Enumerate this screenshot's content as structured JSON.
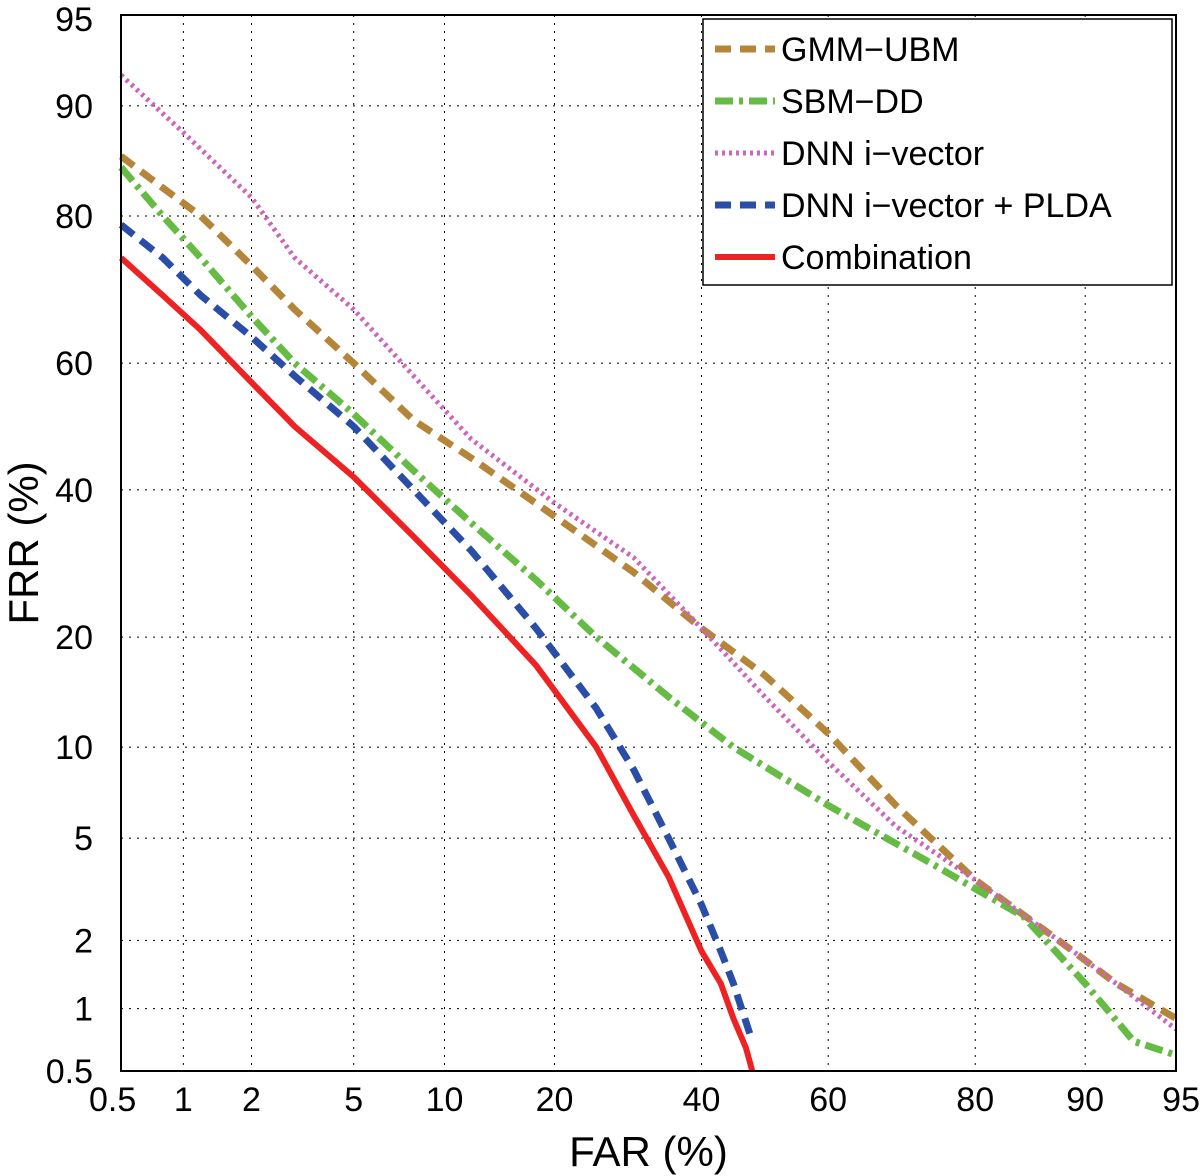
{
  "chart_data": {
    "type": "line",
    "title": "",
    "xlabel": "FAR (%)",
    "ylabel": "FRR (%)",
    "scale": "normal-deviate (DET)",
    "xlim": [
      0.5,
      95
    ],
    "ylim": [
      0.5,
      95
    ],
    "grid": true,
    "legend_position": "top-right",
    "x_ticks": [
      0.5,
      1,
      2,
      5,
      10,
      20,
      40,
      60,
      80,
      90,
      95
    ],
    "x_tick_labels": [
      "0.5",
      "1",
      "2",
      "5",
      "10",
      "20",
      "40",
      "60",
      "80",
      "90",
      "95"
    ],
    "y_ticks": [
      0.5,
      1,
      2,
      5,
      10,
      20,
      40,
      60,
      80,
      90,
      95
    ],
    "y_tick_labels": [
      "0.5",
      "1",
      "2",
      "5",
      "10",
      "20",
      "40",
      "60",
      "80",
      "90",
      "95"
    ],
    "series": [
      {
        "name": "GMM−UBM",
        "color": "#b5863a",
        "style": "dashed",
        "x": [
          0.5,
          0.8,
          1.2,
          2,
          3,
          5,
          8,
          12,
          20,
          30,
          40,
          50,
          60,
          70,
          80,
          88,
          92,
          95
        ],
        "y": [
          86,
          83,
          80,
          74,
          68,
          60,
          51,
          45,
          36,
          28,
          21,
          16,
          11,
          6.5,
          3.5,
          2,
          1.3,
          0.9
        ]
      },
      {
        "name": "SBM−DD",
        "color": "#66bb44",
        "style": "dash-dot",
        "x": [
          0.5,
          0.8,
          1.2,
          2,
          3,
          5,
          8,
          12,
          18,
          25,
          35,
          45,
          60,
          75,
          85,
          90,
          93,
          95
        ],
        "y": [
          85,
          80,
          75,
          67,
          60,
          52,
          43,
          35,
          27,
          20,
          14,
          10,
          6.5,
          4,
          2.5,
          1.3,
          0.7,
          0.6
        ]
      },
      {
        "name": "DNN i−vector",
        "color": "#cc66bb",
        "style": "dotted",
        "x": [
          0.5,
          1,
          2,
          3,
          5,
          8,
          12,
          20,
          30,
          40,
          50,
          60,
          70,
          80,
          88,
          92,
          95
        ],
        "y": [
          92,
          88,
          82,
          75,
          68,
          58,
          48,
          38,
          30,
          21,
          14,
          9,
          5.5,
          3.5,
          2,
          1.3,
          0.8
        ]
      },
      {
        "name": "DNN i−vector + PLDA",
        "color": "#2a4da8",
        "style": "dashed",
        "x": [
          0.5,
          0.8,
          1.2,
          2,
          3,
          5,
          8,
          12,
          18,
          25,
          30,
          35,
          40,
          43,
          45,
          48
        ],
        "y": [
          79,
          75,
          70,
          64,
          58,
          50,
          40,
          31,
          21,
          13,
          8.5,
          5,
          2.8,
          1.8,
          1.3,
          0.7
        ]
      },
      {
        "name": "Combination",
        "color": "#ee2222",
        "style": "solid",
        "x": [
          0.5,
          0.8,
          1.2,
          2,
          3,
          5,
          8,
          12,
          18,
          25,
          30,
          35,
          40,
          43,
          45,
          47,
          48
        ],
        "y": [
          75,
          70,
          65,
          57,
          50,
          42,
          33,
          25,
          17,
          10,
          6,
          3.6,
          1.8,
          1.3,
          0.9,
          0.65,
          0.5
        ]
      }
    ]
  }
}
